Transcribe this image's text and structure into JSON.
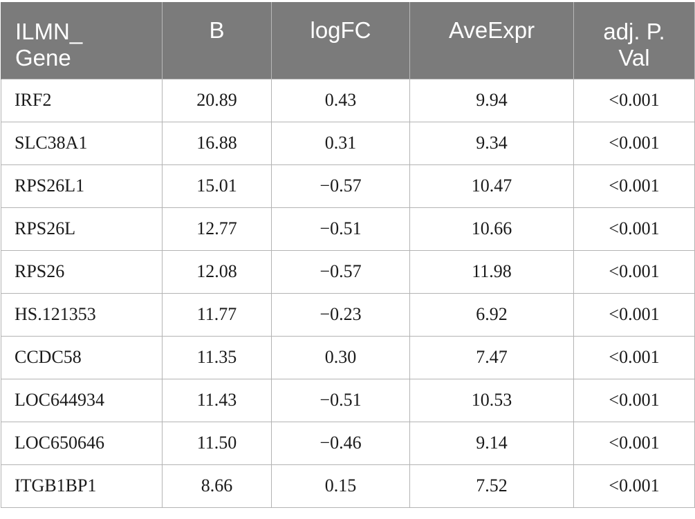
{
  "table": {
    "headers": [
      {
        "line1": "ILMN_",
        "line2": "Gene"
      },
      {
        "line1": "B",
        "line2": ""
      },
      {
        "line1": "logFC",
        "line2": ""
      },
      {
        "line1": "AveExpr",
        "line2": ""
      },
      {
        "line1": "adj. P.",
        "line2": "Val"
      }
    ],
    "rows": [
      [
        "IRF2",
        "20.89",
        "0.43",
        "9.94",
        "<0.001"
      ],
      [
        "SLC38A1",
        "16.88",
        "0.31",
        "9.34",
        "<0.001"
      ],
      [
        "RPS26L1",
        "15.01",
        "−0.57",
        "10.47",
        "<0.001"
      ],
      [
        "RPS26L",
        "12.77",
        "−0.51",
        "10.66",
        "<0.001"
      ],
      [
        "RPS26",
        "12.08",
        "−0.57",
        "11.98",
        "<0.001"
      ],
      [
        "HS.121353",
        "11.77",
        "−0.23",
        "6.92",
        "<0.001"
      ],
      [
        "CCDC58",
        "11.35",
        "0.30",
        "7.47",
        "<0.001"
      ],
      [
        "LOC644934",
        "11.43",
        "−0.51",
        "10.53",
        "<0.001"
      ],
      [
        "LOC650646",
        "11.50",
        "−0.46",
        "9.14",
        "<0.001"
      ],
      [
        "ITGB1BP1",
        "8.66",
        "0.15",
        "7.52",
        "<0.001"
      ]
    ]
  },
  "colors": {
    "header_background": "#7b7b7b",
    "header_text": "#ffffff",
    "grid_line": "#b3b3b3"
  }
}
